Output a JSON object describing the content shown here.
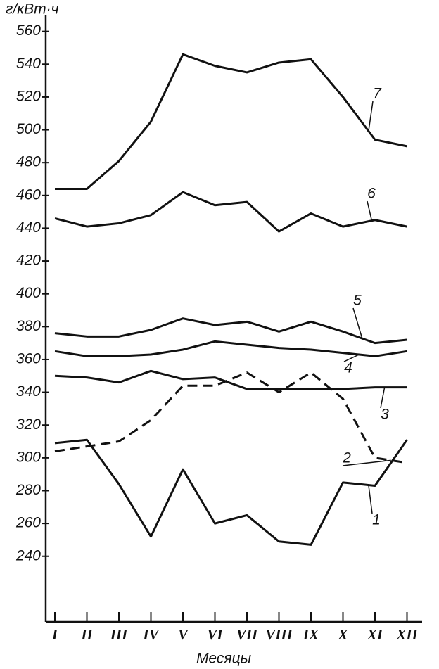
{
  "chart_data": {
    "type": "line",
    "y_label": "г/кВт·ч",
    "x_label": "Месяцы",
    "categories": [
      "I",
      "II",
      "III",
      "IV",
      "V",
      "VI",
      "VII",
      "VIII",
      "IX",
      "X",
      "XI",
      "XII"
    ],
    "ylim": [
      200,
      565
    ],
    "yticks": [
      240,
      260,
      280,
      300,
      320,
      340,
      360,
      380,
      400,
      420,
      440,
      460,
      480,
      500,
      520,
      540,
      560
    ],
    "grid": false,
    "series": [
      {
        "name": "1",
        "color": "#111111",
        "dashed": false,
        "values": [
          309,
          311,
          284,
          252,
          293,
          260,
          265,
          249,
          247,
          285,
          283,
          311
        ]
      },
      {
        "name": "2",
        "color": "#111111",
        "dashed": true,
        "values": [
          304,
          307,
          310,
          323,
          344,
          344,
          352,
          340,
          352,
          336,
          300,
          297
        ]
      },
      {
        "name": "3",
        "color": "#111111",
        "dashed": false,
        "values": [
          350,
          349,
          346,
          353,
          348,
          349,
          342,
          342,
          342,
          342,
          343,
          343
        ]
      },
      {
        "name": "4",
        "color": "#111111",
        "dashed": false,
        "values": [
          365,
          362,
          362,
          363,
          366,
          371,
          369,
          367,
          366,
          364,
          362,
          365
        ]
      },
      {
        "name": "5",
        "color": "#111111",
        "dashed": false,
        "values": [
          376,
          374,
          374,
          378,
          385,
          381,
          383,
          377,
          383,
          377,
          370,
          372
        ]
      },
      {
        "name": "6",
        "color": "#111111",
        "dashed": false,
        "values": [
          446,
          441,
          443,
          448,
          462,
          454,
          456,
          438,
          449,
          441,
          445,
          441
        ]
      },
      {
        "name": "7",
        "color": "#111111",
        "dashed": false,
        "values": [
          464,
          464,
          481,
          505,
          546,
          539,
          535,
          541,
          543,
          520,
          494,
          490
        ]
      }
    ]
  }
}
